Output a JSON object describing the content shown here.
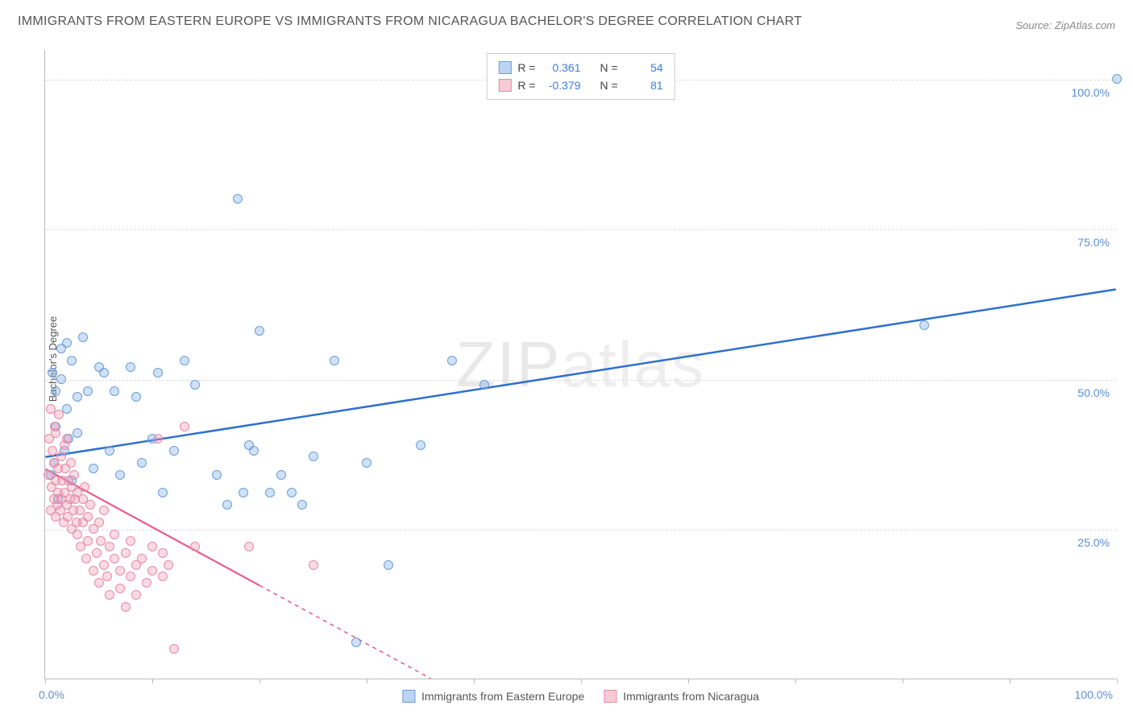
{
  "title": "IMMIGRANTS FROM EASTERN EUROPE VS IMMIGRANTS FROM NICARAGUA BACHELOR'S DEGREE CORRELATION CHART",
  "source": "Source: ZipAtlas.com",
  "watermark_zip": "ZIP",
  "watermark_atlas": "atlas",
  "y_axis_title": "Bachelor's Degree",
  "chart": {
    "type": "scatter",
    "xlim": [
      0,
      100
    ],
    "ylim": [
      0,
      105
    ],
    "y_ticks": [
      25,
      50,
      75,
      100
    ],
    "y_tick_labels": [
      "25.0%",
      "50.0%",
      "75.0%",
      "100.0%"
    ],
    "x_tick_positions": [
      0,
      10,
      20,
      30,
      40,
      50,
      60,
      70,
      80,
      90,
      100
    ],
    "x_label_0": "0.0%",
    "x_label_100": "100.0%",
    "grid_color": "#dddddd",
    "axis_color": "#bbbbbb",
    "background_color": "#ffffff",
    "marker_radius": 6,
    "marker_stroke_width": 1.2,
    "series": [
      {
        "name": "Immigrants from Eastern Europe",
        "legend_label": "Immigrants from Eastern Europe",
        "fill_color": "rgba(120,170,230,0.35)",
        "stroke_color": "#6a9edb",
        "R_label": "R =",
        "R_value": "0.361",
        "N_label": "N =",
        "N_value": "54",
        "trend": {
          "x1": 0,
          "y1": 37,
          "x2": 100,
          "y2": 65,
          "color": "#2f6fd0",
          "width": 2.5,
          "solid_until_x": 100
        },
        "points": [
          [
            0.5,
            34
          ],
          [
            0.7,
            51
          ],
          [
            0.8,
            36
          ],
          [
            1,
            48
          ],
          [
            1,
            42
          ],
          [
            1.2,
            30
          ],
          [
            1.5,
            55
          ],
          [
            1.5,
            50
          ],
          [
            1.8,
            38
          ],
          [
            2,
            45
          ],
          [
            2,
            56
          ],
          [
            2.2,
            40
          ],
          [
            2.5,
            33
          ],
          [
            2.5,
            53
          ],
          [
            3,
            47
          ],
          [
            3,
            41
          ],
          [
            3.5,
            57
          ],
          [
            4,
            48
          ],
          [
            4.5,
            35
          ],
          [
            5,
            52
          ],
          [
            5.5,
            51
          ],
          [
            6,
            38
          ],
          [
            6.5,
            48
          ],
          [
            7,
            34
          ],
          [
            8,
            52
          ],
          [
            8.5,
            47
          ],
          [
            9,
            36
          ],
          [
            10,
            40
          ],
          [
            10.5,
            51
          ],
          [
            11,
            31
          ],
          [
            12,
            38
          ],
          [
            13,
            53
          ],
          [
            14,
            49
          ],
          [
            16,
            34
          ],
          [
            17,
            29
          ],
          [
            18,
            80
          ],
          [
            18.5,
            31
          ],
          [
            19,
            39
          ],
          [
            19.5,
            38
          ],
          [
            20,
            58
          ],
          [
            21,
            31
          ],
          [
            22,
            34
          ],
          [
            23,
            31
          ],
          [
            24,
            29
          ],
          [
            25,
            37
          ],
          [
            27,
            53
          ],
          [
            29,
            6
          ],
          [
            30,
            36
          ],
          [
            32,
            19
          ],
          [
            35,
            39
          ],
          [
            38,
            53
          ],
          [
            41,
            49
          ],
          [
            82,
            59
          ],
          [
            100,
            100
          ]
        ]
      },
      {
        "name": "Immigrants from Nicaragua",
        "legend_label": "Immigrants from Nicaragua",
        "fill_color": "rgba(240,150,175,0.35)",
        "stroke_color": "#e68aa6",
        "R_label": "R =",
        "R_value": "-0.379",
        "N_label": "N =",
        "N_value": "81",
        "trend": {
          "x1": 0,
          "y1": 35,
          "x2": 36,
          "y2": 0,
          "color": "#e85c8a",
          "width": 2.2,
          "solid_until_x": 20,
          "dash": "5,5"
        },
        "points": [
          [
            0.3,
            34
          ],
          [
            0.4,
            40
          ],
          [
            0.5,
            28
          ],
          [
            0.5,
            45
          ],
          [
            0.6,
            32
          ],
          [
            0.7,
            38
          ],
          [
            0.8,
            30
          ],
          [
            0.8,
            36
          ],
          [
            0.9,
            42
          ],
          [
            1,
            27
          ],
          [
            1,
            33
          ],
          [
            1,
            41
          ],
          [
            1.1,
            29
          ],
          [
            1.2,
            35
          ],
          [
            1.2,
            31
          ],
          [
            1.3,
            44
          ],
          [
            1.4,
            28
          ],
          [
            1.5,
            37
          ],
          [
            1.5,
            30
          ],
          [
            1.6,
            33
          ],
          [
            1.7,
            26
          ],
          [
            1.8,
            39
          ],
          [
            1.8,
            31
          ],
          [
            1.9,
            35
          ],
          [
            2,
            29
          ],
          [
            2,
            40
          ],
          [
            2.1,
            27
          ],
          [
            2.2,
            33
          ],
          [
            2.3,
            30
          ],
          [
            2.4,
            36
          ],
          [
            2.5,
            25
          ],
          [
            2.5,
            32
          ],
          [
            2.6,
            28
          ],
          [
            2.7,
            34
          ],
          [
            2.8,
            30
          ],
          [
            2.9,
            26
          ],
          [
            3,
            31
          ],
          [
            3,
            24
          ],
          [
            3.2,
            28
          ],
          [
            3.3,
            22
          ],
          [
            3.5,
            30
          ],
          [
            3.5,
            26
          ],
          [
            3.7,
            32
          ],
          [
            3.8,
            20
          ],
          [
            4,
            27
          ],
          [
            4,
            23
          ],
          [
            4.2,
            29
          ],
          [
            4.5,
            18
          ],
          [
            4.5,
            25
          ],
          [
            4.8,
            21
          ],
          [
            5,
            26
          ],
          [
            5,
            16
          ],
          [
            5.2,
            23
          ],
          [
            5.5,
            19
          ],
          [
            5.5,
            28
          ],
          [
            5.8,
            17
          ],
          [
            6,
            22
          ],
          [
            6,
            14
          ],
          [
            6.5,
            20
          ],
          [
            6.5,
            24
          ],
          [
            7,
            18
          ],
          [
            7,
            15
          ],
          [
            7.5,
            21
          ],
          [
            7.5,
            12
          ],
          [
            8,
            17
          ],
          [
            8,
            23
          ],
          [
            8.5,
            19
          ],
          [
            8.5,
            14
          ],
          [
            9,
            20
          ],
          [
            9.5,
            16
          ],
          [
            10,
            18
          ],
          [
            10,
            22
          ],
          [
            10.5,
            40
          ],
          [
            11,
            21
          ],
          [
            11,
            17
          ],
          [
            11.5,
            19
          ],
          [
            12,
            5
          ],
          [
            13,
            42
          ],
          [
            14,
            22
          ],
          [
            19,
            22
          ],
          [
            25,
            19
          ]
        ]
      }
    ]
  },
  "legend_box": {
    "swatch1_fill": "rgba(120,170,230,0.5)",
    "swatch1_border": "#6a9edb",
    "swatch2_fill": "rgba(240,150,175,0.5)",
    "swatch2_border": "#e68aa6"
  }
}
